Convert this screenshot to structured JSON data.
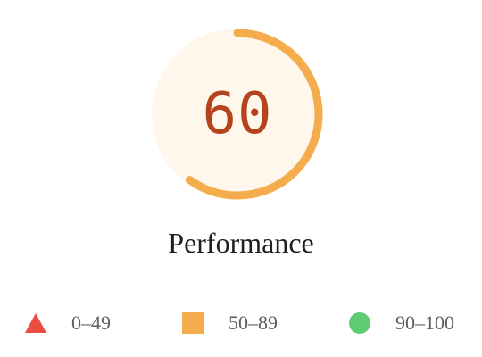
{
  "gauge": {
    "score": "60",
    "fraction": 0.6,
    "arc_color": "#f4ac4c",
    "background_color": "#fff6ec",
    "score_color": "#b5431e"
  },
  "category": {
    "title": "Performance"
  },
  "legend": {
    "items": [
      {
        "range": "0–49",
        "shape": "triangle",
        "color": "#eb4b41"
      },
      {
        "range": "50–89",
        "shape": "square",
        "color": "#f4ac4c"
      },
      {
        "range": "90–100",
        "shape": "circle",
        "color": "#5fcb72"
      }
    ]
  }
}
